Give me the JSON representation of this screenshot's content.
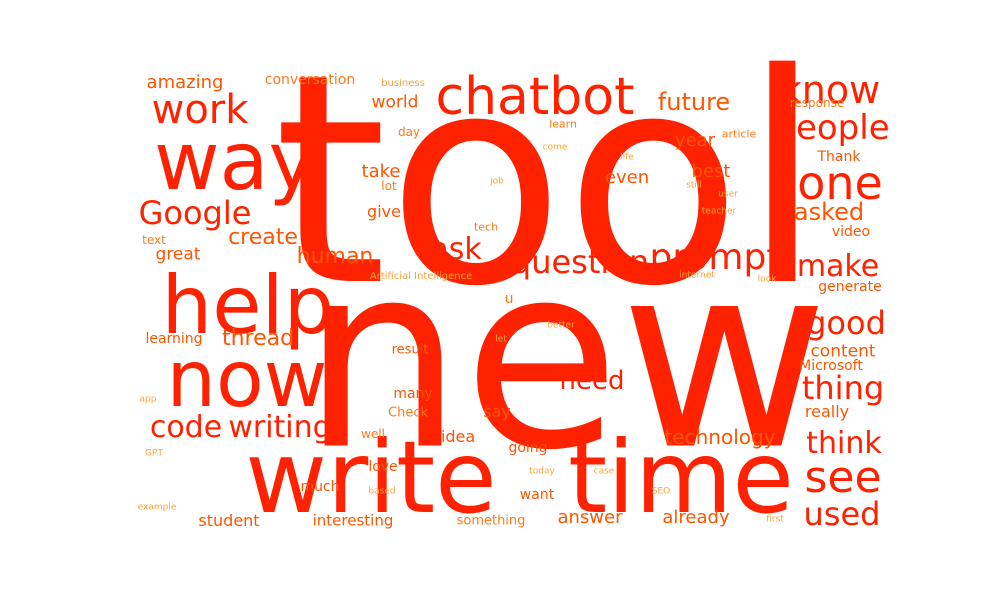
{
  "colors": {
    "background": "#ffffff",
    "primary": "#ff2200",
    "secondary": "#ff5500",
    "tertiary": "#ff7a1a",
    "faint": "#ffa13a"
  },
  "words": [
    {
      "text": "tool",
      "size": 290,
      "color": "#ff2200"
    },
    {
      "text": "new",
      "size": 255,
      "color": "#ff2200"
    },
    {
      "text": "write",
      "size": 100,
      "color": "#ff2200"
    },
    {
      "text": "time",
      "size": 100,
      "color": "#ff2200"
    },
    {
      "text": "way",
      "size": 80,
      "color": "#ff2200"
    },
    {
      "text": "help",
      "size": 80,
      "color": "#ff2200"
    },
    {
      "text": "now",
      "size": 78,
      "color": "#ff2200"
    },
    {
      "text": "chatbot",
      "size": 52,
      "color": "#ff2200"
    },
    {
      "text": "work",
      "size": 40,
      "color": "#ff2200"
    },
    {
      "text": "know",
      "size": 38,
      "color": "#ff2200"
    },
    {
      "text": "people",
      "size": 34,
      "color": "#ff2200"
    },
    {
      "text": "one",
      "size": 46,
      "color": "#ff2200"
    },
    {
      "text": "Google",
      "size": 32,
      "color": "#ff2200"
    },
    {
      "text": "prompt",
      "size": 36,
      "color": "#ff2200"
    },
    {
      "text": "question",
      "size": 32,
      "color": "#ff2200"
    },
    {
      "text": "ask",
      "size": 30,
      "color": "#ff2200"
    },
    {
      "text": "make",
      "size": 30,
      "color": "#ff2200"
    },
    {
      "text": "good",
      "size": 32,
      "color": "#ff2200"
    },
    {
      "text": "thing",
      "size": 32,
      "color": "#ff2200"
    },
    {
      "text": "think",
      "size": 30,
      "color": "#ff2200"
    },
    {
      "text": "see",
      "size": 44,
      "color": "#ff2200"
    },
    {
      "text": "used",
      "size": 32,
      "color": "#ff2200"
    },
    {
      "text": "code",
      "size": 30,
      "color": "#ff2200"
    },
    {
      "text": "writing",
      "size": 30,
      "color": "#ff2200"
    },
    {
      "text": "need",
      "size": 26,
      "color": "#ff2200"
    },
    {
      "text": "future",
      "size": 24,
      "color": "#ff5500"
    },
    {
      "text": "create",
      "size": 22,
      "color": "#ff5500"
    },
    {
      "text": "asked",
      "size": 24,
      "color": "#ff5500"
    },
    {
      "text": "human",
      "size": 22,
      "color": "#ff5500"
    },
    {
      "text": "thread",
      "size": 22,
      "color": "#ff5500"
    },
    {
      "text": "technology",
      "size": 20,
      "color": "#ff5500"
    },
    {
      "text": "take",
      "size": 18,
      "color": "#ff5500"
    },
    {
      "text": "best",
      "size": 18,
      "color": "#ff5500"
    },
    {
      "text": "even",
      "size": 18,
      "color": "#ff5500"
    },
    {
      "text": "year",
      "size": 18,
      "color": "#ff5500"
    },
    {
      "text": "world",
      "size": 17,
      "color": "#ff5500"
    },
    {
      "text": "amazing",
      "size": 18,
      "color": "#ff5500"
    },
    {
      "text": "great",
      "size": 17,
      "color": "#ff5500"
    },
    {
      "text": "give",
      "size": 16,
      "color": "#ff5500"
    },
    {
      "text": "content",
      "size": 17,
      "color": "#ff5500"
    },
    {
      "text": "answer",
      "size": 18,
      "color": "#ff5500"
    },
    {
      "text": "already",
      "size": 18,
      "color": "#ff5500"
    },
    {
      "text": "student",
      "size": 16,
      "color": "#ff5500"
    },
    {
      "text": "interesting",
      "size": 15,
      "color": "#ff5500"
    },
    {
      "text": "idea",
      "size": 16,
      "color": "#ff5500"
    },
    {
      "text": "say",
      "size": 16,
      "color": "#ff5500"
    },
    {
      "text": "really",
      "size": 16,
      "color": "#ff5500"
    },
    {
      "text": "Thank",
      "size": 14,
      "color": "#ff5500"
    },
    {
      "text": "video",
      "size": 14,
      "color": "#ff5500"
    },
    {
      "text": "generate",
      "size": 14,
      "color": "#ff5500"
    },
    {
      "text": "Microsoft",
      "size": 14,
      "color": "#ff5500"
    },
    {
      "text": "love",
      "size": 14,
      "color": "#ff5500"
    },
    {
      "text": "many",
      "size": 14,
      "color": "#ff5500"
    },
    {
      "text": "going",
      "size": 14,
      "color": "#ff5500"
    },
    {
      "text": "want",
      "size": 14,
      "color": "#ff5500"
    },
    {
      "text": "much",
      "size": 14,
      "color": "#ff5500"
    },
    {
      "text": "learning",
      "size": 14,
      "color": "#ff5500"
    },
    {
      "text": "result",
      "size": 13,
      "color": "#ff5500"
    },
    {
      "text": "conversation",
      "size": 14,
      "color": "#ff7a1a"
    },
    {
      "text": "something",
      "size": 13,
      "color": "#ff7a1a"
    },
    {
      "text": "Check",
      "size": 13,
      "color": "#ff7a1a"
    },
    {
      "text": "response",
      "size": 12,
      "color": "#ff7a1a"
    },
    {
      "text": "well",
      "size": 12,
      "color": "#ff7a1a"
    },
    {
      "text": "lot",
      "size": 12,
      "color": "#ff7a1a"
    },
    {
      "text": "day",
      "size": 12,
      "color": "#ff7a1a"
    },
    {
      "text": "u",
      "size": 14,
      "color": "#ff7a1a"
    },
    {
      "text": "text",
      "size": 12,
      "color": "#ff7a1a"
    },
    {
      "text": "learn",
      "size": 11,
      "color": "#ff7a1a"
    },
    {
      "text": "article",
      "size": 11,
      "color": "#ff7a1a"
    },
    {
      "text": "tech",
      "size": 11,
      "color": "#ff7a1a"
    },
    {
      "text": "business",
      "size": 10,
      "color": "#ffa13a"
    },
    {
      "text": "come",
      "size": 9,
      "color": "#ffa13a"
    },
    {
      "text": "life",
      "size": 9,
      "color": "#ffa13a"
    },
    {
      "text": "job",
      "size": 9,
      "color": "#ffa13a"
    },
    {
      "text": "still",
      "size": 9,
      "color": "#ffa13a"
    },
    {
      "text": "user",
      "size": 9,
      "color": "#ffa13a"
    },
    {
      "text": "teacher",
      "size": 9,
      "color": "#ffa13a"
    },
    {
      "text": "Artificial Intelligence",
      "size": 10,
      "color": "#ffa13a"
    },
    {
      "text": "internet",
      "size": 9,
      "color": "#ffa13a"
    },
    {
      "text": "look",
      "size": 9,
      "color": "#ffa13a"
    },
    {
      "text": "better",
      "size": 9,
      "color": "#ffa13a"
    },
    {
      "text": "let",
      "size": 9,
      "color": "#ffa13a"
    },
    {
      "text": "app",
      "size": 9,
      "color": "#ffa13a"
    },
    {
      "text": "GPT",
      "size": 9,
      "color": "#ffa13a"
    },
    {
      "text": "today",
      "size": 9,
      "color": "#ffa13a"
    },
    {
      "text": "case",
      "size": 9,
      "color": "#ffa13a"
    },
    {
      "text": "based",
      "size": 9,
      "color": "#ffa13a"
    },
    {
      "text": "SEO",
      "size": 9,
      "color": "#ffa13a"
    },
    {
      "text": "example",
      "size": 9,
      "color": "#ffa13a"
    },
    {
      "text": "first",
      "size": 9,
      "color": "#ffa13a"
    }
  ]
}
